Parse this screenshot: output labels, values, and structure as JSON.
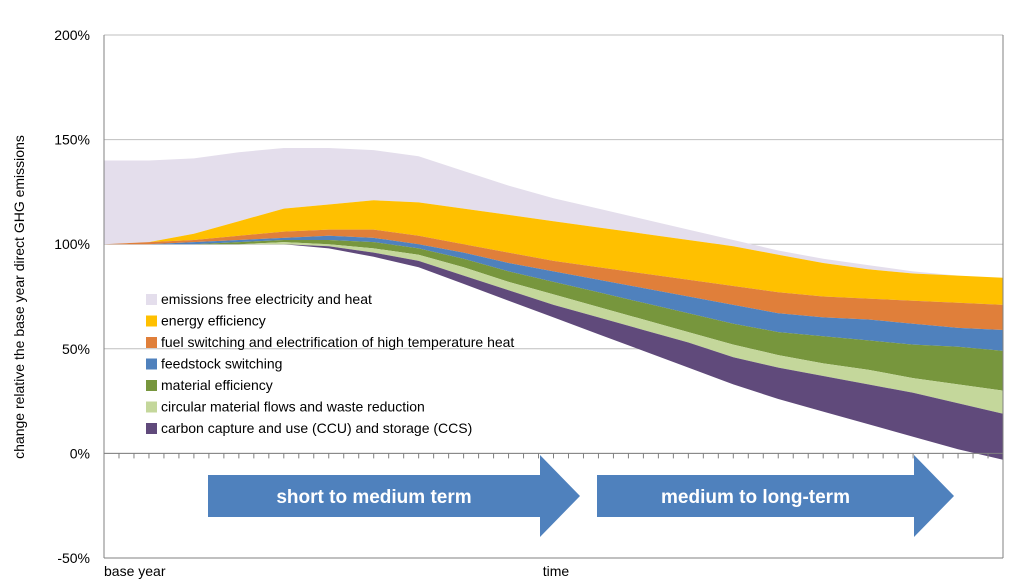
{
  "chart_data": {
    "type": "area",
    "ylabel": "change relative the base year direct GHG emissions",
    "xlabel": "time",
    "x_start_label": "base year",
    "ylim": [
      -50,
      200
    ],
    "yticks": [
      "200%",
      "150%",
      "100%",
      "50%",
      "0%",
      "-50%"
    ],
    "ytick_values": [
      200,
      150,
      100,
      50,
      0,
      -50
    ],
    "grid": true,
    "legend_position": "center-left",
    "x": [
      0,
      0.05,
      0.1,
      0.15,
      0.2,
      0.25,
      0.3,
      0.35,
      0.4,
      0.45,
      0.5,
      0.55,
      0.6,
      0.65,
      0.7,
      0.75,
      0.8,
      0.85,
      0.9,
      0.95,
      1.0
    ],
    "boundaries": [
      [
        140,
        140,
        141,
        144,
        146,
        146,
        145,
        142,
        135,
        128,
        122,
        117,
        112,
        107,
        102,
        97,
        93,
        90,
        87,
        85,
        84
      ],
      [
        100,
        101,
        105,
        111,
        117,
        119,
        121,
        120,
        117,
        114,
        111,
        108,
        105,
        102,
        99,
        95,
        91,
        88,
        86,
        85,
        84
      ],
      [
        100,
        101,
        102,
        104,
        106,
        107,
        107,
        104,
        100,
        96,
        92,
        89,
        86,
        83,
        80,
        77,
        75,
        74,
        73,
        72,
        71
      ],
      [
        100,
        100,
        101,
        102,
        103,
        104,
        103,
        100,
        96,
        91,
        87,
        83,
        79,
        75,
        71,
        67,
        65,
        64,
        62,
        60,
        59
      ],
      [
        100,
        100,
        100,
        101,
        102,
        102,
        101,
        98,
        93,
        87,
        82,
        77,
        72,
        67,
        62,
        58,
        56,
        54,
        52,
        51,
        49
      ],
      [
        100,
        100,
        100,
        100,
        101,
        100,
        98,
        95,
        89,
        82,
        76,
        70,
        64,
        58,
        52,
        47,
        43,
        40,
        36,
        33,
        30
      ],
      [
        100,
        100,
        100,
        100,
        100,
        99,
        96,
        92,
        85,
        78,
        71,
        65,
        59,
        53,
        46,
        41,
        37,
        33,
        29,
        24,
        19
      ],
      [
        100,
        100,
        100,
        100,
        100,
        98,
        94,
        89,
        81,
        73,
        65,
        57,
        49,
        41,
        33,
        26,
        20,
        14,
        8,
        2,
        -3
      ]
    ],
    "series": [
      {
        "name": "emissions free electricity and heat",
        "color": "#E4DEEC"
      },
      {
        "name": "energy efficiency",
        "color": "#FFC000"
      },
      {
        "name": "fuel switching and electrification of high temperature heat",
        "color": "#E07F3A"
      },
      {
        "name": "feedstock switching",
        "color": "#4F81BD"
      },
      {
        "name": "material efficiency",
        "color": "#77963D"
      },
      {
        "name": "circular material flows and waste reduction",
        "color": "#C4D79B"
      },
      {
        "name": "carbon capture and use (CCU) and storage (CCS)",
        "color": "#604A7B"
      }
    ],
    "annotations": [
      {
        "text": "short to medium term",
        "shape": "arrow",
        "color": "#4F81BD"
      },
      {
        "text": "medium to long-term",
        "shape": "arrow",
        "color": "#4F81BD"
      }
    ]
  }
}
